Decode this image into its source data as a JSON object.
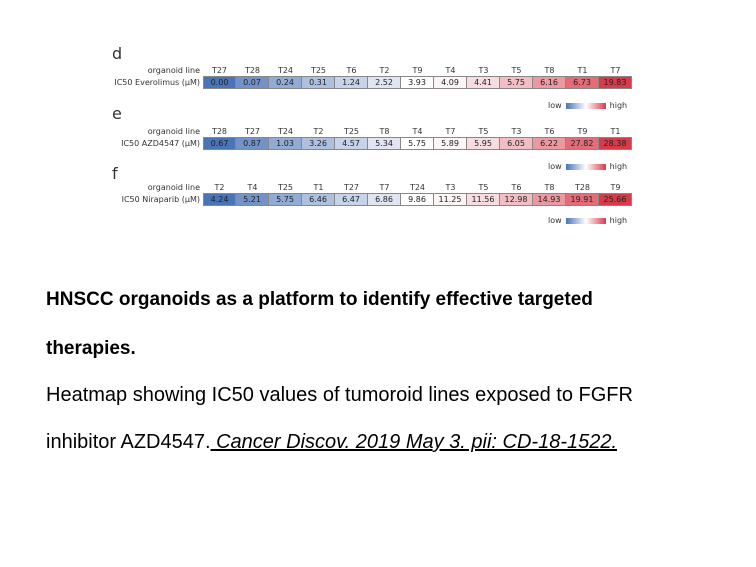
{
  "chart_data": [
    {
      "type": "heatmap",
      "panel": "d",
      "row_header": "organoid line",
      "row_label": "IC50 Everolimus (µM)",
      "categories": [
        "T27",
        "T28",
        "T24",
        "T25",
        "T6",
        "T2",
        "T9",
        "T4",
        "T3",
        "T5",
        "T8",
        "T1",
        "T7"
      ],
      "values": [
        0.0,
        0.07,
        0.24,
        0.31,
        1.24,
        2.52,
        3.93,
        4.09,
        4.41,
        5.75,
        6.16,
        6.73,
        19.83
      ],
      "value_text": [
        "0.00",
        "0.07",
        "0.24",
        "0.31",
        "1.24",
        "2.52",
        "3.93",
        "4.09",
        "4.41",
        "5.75",
        "6.16",
        "6.73",
        "19.83"
      ],
      "legend": {
        "low": "low",
        "high": "high"
      }
    },
    {
      "type": "heatmap",
      "panel": "e",
      "row_header": "organoid line",
      "row_label": "IC50 AZD4547 (µM)",
      "categories": [
        "T28",
        "T27",
        "T24",
        "T2",
        "T25",
        "T8",
        "T4",
        "T7",
        "T5",
        "T3",
        "T6",
        "T9",
        "T1"
      ],
      "values": [
        0.67,
        0.87,
        1.03,
        3.26,
        4.57,
        5.34,
        5.75,
        5.89,
        5.95,
        6.05,
        6.22,
        27.82,
        28.38
      ],
      "value_text": [
        "0.67",
        "0.87",
        "1.03",
        "3.26",
        "4.57",
        "5.34",
        "5.75",
        "5.89",
        "5.95",
        "6.05",
        "6.22",
        "27.82",
        "28.38"
      ],
      "legend": {
        "low": "low",
        "high": "high"
      }
    },
    {
      "type": "heatmap",
      "panel": "f",
      "row_header": "organoid line",
      "row_label": "IC50 Niraparib (µM)",
      "categories": [
        "T2",
        "T4",
        "T25",
        "T1",
        "T27",
        "T7",
        "T24",
        "T3",
        "T5",
        "T6",
        "T8",
        "T28",
        "T9"
      ],
      "values": [
        4.24,
        5.21,
        5.75,
        6.46,
        6.47,
        6.86,
        9.86,
        11.25,
        11.56,
        12.98,
        14.93,
        19.91,
        25.66
      ],
      "value_text": [
        "4.24",
        "5.21",
        "5.75",
        "6.46",
        "6.47",
        "6.86",
        "9.86",
        "11.25",
        "11.56",
        "12.98",
        "14.93",
        "19.91",
        "25.66"
      ],
      "legend": {
        "low": "low",
        "high": "high"
      }
    }
  ],
  "caption": {
    "title_line1": "HNSCC organoids as a platform to identify effective targeted",
    "title_line2": "therapies.",
    "body_line1": "Heatmap showing IC50 values of tumoroid lines exposed to FGFR",
    "body_line2_prefix": "inhibitor AZD4547.",
    "citation": " Cancer Discov. 2019 May 3. pii: CD-18-1522. "
  },
  "colors": {
    "low": "#4a74b8",
    "mid": "#ffffff",
    "high": "#d93a4a"
  }
}
